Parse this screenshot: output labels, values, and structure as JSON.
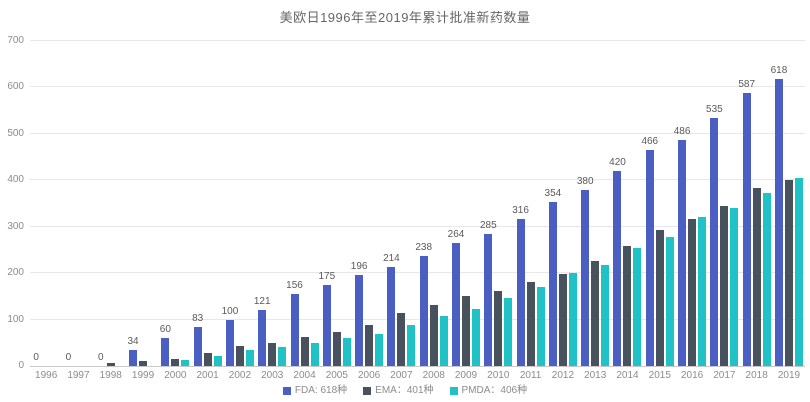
{
  "title": "美欧日1996年至2019年累计批准新药数量",
  "colors": {
    "fda": "#4a5fc1",
    "ema": "#47525e",
    "pmda": "#20c3c5",
    "grid": "#e8e8e8",
    "axis_line": "#c9c9c9",
    "axis_text": "#8c8c8c",
    "value_label_text": "#595959",
    "title_text": "#666666"
  },
  "legend": [
    {
      "id": "fda",
      "label": "FDA: 618种"
    },
    {
      "id": "ema",
      "label": "EMA：401种"
    },
    {
      "id": "pmda",
      "label": "PMDA：406种"
    }
  ],
  "chart_data": {
    "type": "bar",
    "title": "美欧日1996年至2019年累计批准新药数量",
    "xlabel": "",
    "ylabel": "",
    "ylim": [
      0,
      700
    ],
    "yticks": [
      0,
      100,
      200,
      300,
      400,
      500,
      600,
      700
    ],
    "grid": true,
    "legend_position": "bottom",
    "categories": [
      "1996",
      "1997",
      "1998",
      "1999",
      "2000",
      "2001",
      "2002",
      "2003",
      "2004",
      "2005",
      "2006",
      "2007",
      "2008",
      "2009",
      "2010",
      "2011",
      "2012",
      "2013",
      "2014",
      "2015",
      "2016",
      "2017",
      "2018",
      "2019"
    ],
    "series": [
      {
        "name": "FDA",
        "color_key": "fda",
        "show_value_labels": true,
        "values": [
          0,
          0,
          0,
          34,
          60,
          83,
          100,
          121,
          156,
          175,
          196,
          214,
          238,
          264,
          285,
          316,
          354,
          380,
          420,
          466,
          486,
          535,
          587,
          618
        ]
      },
      {
        "name": "EMA",
        "color_key": "ema",
        "show_value_labels": false,
        "values": [
          0,
          0,
          7,
          10,
          15,
          27,
          43,
          50,
          62,
          73,
          88,
          114,
          131,
          150,
          161,
          180,
          199,
          227,
          258,
          294,
          317,
          345,
          384,
          401
        ]
      },
      {
        "name": "PMDA",
        "color_key": "pmda",
        "show_value_labels": false,
        "values": [
          0,
          0,
          0,
          0,
          12,
          22,
          35,
          41,
          50,
          61,
          69,
          89,
          108,
          122,
          146,
          170,
          200,
          218,
          255,
          277,
          320,
          340,
          372,
          406
        ]
      }
    ],
    "final_totals": {
      "FDA": 618,
      "EMA": 401,
      "PMDA": 406
    }
  }
}
